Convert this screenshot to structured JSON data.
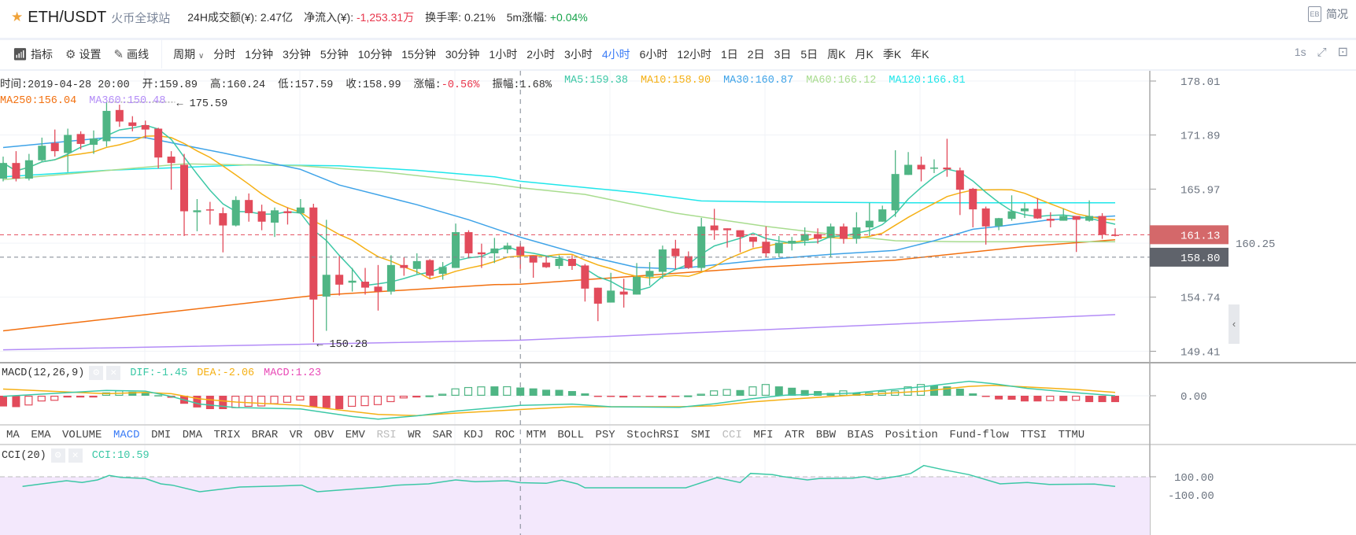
{
  "header": {
    "pair": "ETH/USDT",
    "exchange": "火币全球站",
    "stats": [
      {
        "label": "24H成交额(¥): ",
        "value": "2.47亿",
        "tone": "neutral"
      },
      {
        "label": "净流入(¥): ",
        "value": "-1,253.31万",
        "tone": "down"
      },
      {
        "label": "换手率: ",
        "value": "0.21%",
        "tone": "neutral"
      },
      {
        "label": "5m涨幅: ",
        "value": "+0.04%",
        "tone": "up"
      }
    ],
    "summary_label": "简况"
  },
  "toolbar": {
    "indicators": "指标",
    "settings": "设置",
    "draw": "画线",
    "period_label": "周期",
    "periods": [
      "分时",
      "1分钟",
      "3分钟",
      "5分钟",
      "10分钟",
      "15分钟",
      "30分钟",
      "1小时",
      "2小时",
      "3小时",
      "4小时",
      "6小时",
      "12小时",
      "1日",
      "2日",
      "3日",
      "5日",
      "周K",
      "月K",
      "季K",
      "年K"
    ],
    "active_period": "4小时",
    "interval": "1s"
  },
  "info": {
    "row1": [
      {
        "text": "时间:2019-04-28 20:00",
        "color": "#333333"
      },
      {
        "text": "开:159.89",
        "color": "#333333"
      },
      {
        "text": "高:160.24",
        "color": "#333333"
      },
      {
        "text": "低:157.59",
        "color": "#333333"
      },
      {
        "text": "收:158.99",
        "color": "#333333"
      },
      {
        "text": "涨幅:",
        "color": "#333333",
        "value": "-0.56%",
        "value_color": "#e8344a"
      },
      {
        "text": "振幅:1.68%",
        "color": "#333333"
      },
      {
        "text": "MA5:159.38",
        "color": "#3cc8a6"
      },
      {
        "text": "MA10:158.90",
        "color": "#f5b014"
      },
      {
        "text": "MA30:160.87",
        "color": "#3ea3e8"
      },
      {
        "text": "MA60:166.12",
        "color": "#a8dc8e"
      },
      {
        "text": "MA120:166.81",
        "color": "#1fe6ea"
      }
    ],
    "row2": [
      {
        "text": "MA250:156.04",
        "color": "#f2700f"
      },
      {
        "text": "MA360:150.48",
        "color": "#b38cf7"
      }
    ]
  },
  "colors": {
    "up": "#4fb584",
    "down": "#e24b5b",
    "ma5": "#3cc8a6",
    "ma10": "#f5b014",
    "ma30": "#3ea3e8",
    "ma60": "#a8dc8e",
    "ma120": "#1fe6ea",
    "ma250": "#f2700f",
    "ma360": "#b38cf7",
    "dif": "#3cc8a6",
    "dea": "#f5b014",
    "macd": "#e94bb7",
    "last_price_bg": "#d4686a",
    "cross_price_bg": "#5f636b"
  },
  "chart_data": {
    "type": "candlestick",
    "price_scale": "log",
    "y_ticks": [
      "178.01",
      "171.89",
      "165.97",
      "160.25",
      "154.74",
      "149.41"
    ],
    "last_price": "161.13",
    "crosshair_price": "158.80",
    "crosshair_index": 40,
    "max_annotation": "175.59",
    "min_annotation": "150.28",
    "candles": [
      [
        167.1,
        169.5,
        166.8,
        168.8
      ],
      [
        168.8,
        170.1,
        166.8,
        167.1
      ],
      [
        167.1,
        169.8,
        166.9,
        169.1
      ],
      [
        169.1,
        171.6,
        169.0,
        170.7
      ],
      [
        171.0,
        172.5,
        169.5,
        170.1
      ],
      [
        169.9,
        172.6,
        167.8,
        171.9
      ],
      [
        172.0,
        172.3,
        170.3,
        170.9
      ],
      [
        170.8,
        172.4,
        169.8,
        171.5
      ],
      [
        171.2,
        175.59,
        170.6,
        174.6
      ],
      [
        174.7,
        175.3,
        172.8,
        173.4
      ],
      [
        173.3,
        174.0,
        172.3,
        172.9
      ],
      [
        173.0,
        173.5,
        171.5,
        172.5
      ],
      [
        172.6,
        172.7,
        168.2,
        169.4
      ],
      [
        169.5,
        170.1,
        165.9,
        168.8
      ],
      [
        168.6,
        169.8,
        161.0,
        163.6
      ],
      [
        163.5,
        164.9,
        161.5,
        163.7
      ],
      [
        163.8,
        164.6,
        162.2,
        163.7
      ],
      [
        163.4,
        164.0,
        159.3,
        162.1
      ],
      [
        162.1,
        165.2,
        162.0,
        164.8
      ],
      [
        164.8,
        165.5,
        162.5,
        163.4
      ],
      [
        163.6,
        164.3,
        161.6,
        162.5
      ],
      [
        162.4,
        164.0,
        160.9,
        163.7
      ],
      [
        163.6,
        164.0,
        162.2,
        163.4
      ],
      [
        163.4,
        164.9,
        163.3,
        164.0
      ],
      [
        164.0,
        164.4,
        150.28,
        154.5
      ],
      [
        154.8,
        162.7,
        151.4,
        157.0
      ],
      [
        157.0,
        158.9,
        154.9,
        156.0
      ],
      [
        156.2,
        157.7,
        155.3,
        156.4
      ],
      [
        156.3,
        157.7,
        155.0,
        155.7
      ],
      [
        155.8,
        158.0,
        153.4,
        155.3
      ],
      [
        155.3,
        159.0,
        155.0,
        158.0
      ],
      [
        158.0,
        158.8,
        156.9,
        157.7
      ],
      [
        157.6,
        159.2,
        157.1,
        158.4
      ],
      [
        158.5,
        158.6,
        156.6,
        156.9
      ],
      [
        157.1,
        158.3,
        156.5,
        157.8
      ],
      [
        157.7,
        162.3,
        157.7,
        161.4
      ],
      [
        161.4,
        161.6,
        158.7,
        159.2
      ],
      [
        159.3,
        160.2,
        157.7,
        159.1
      ],
      [
        159.2,
        160.8,
        158.2,
        159.7
      ],
      [
        159.6,
        160.3,
        159.2,
        160.0
      ],
      [
        159.89,
        160.24,
        157.59,
        158.99
      ],
      [
        158.97,
        158.97,
        156.7,
        158.25
      ],
      [
        158.25,
        158.9,
        157.7,
        157.77
      ],
      [
        157.9,
        159.0,
        157.6,
        158.63
      ],
      [
        158.63,
        159.0,
        157.5,
        157.9
      ],
      [
        157.95,
        158.1,
        154.3,
        155.6
      ],
      [
        155.69,
        155.7,
        152.35,
        154.09
      ],
      [
        154.2,
        157.2,
        154.2,
        155.4
      ],
      [
        155.3,
        156.6,
        153.7,
        155.0
      ],
      [
        155.0,
        158.2,
        155.0,
        156.8
      ],
      [
        156.8,
        158.3,
        155.9,
        157.4
      ],
      [
        157.3,
        160.0,
        156.6,
        159.6
      ],
      [
        159.7,
        160.6,
        157.6,
        158.9
      ],
      [
        158.9,
        159.4,
        157.6,
        157.7
      ],
      [
        157.7,
        162.9,
        157.4,
        162.0
      ],
      [
        162.1,
        163.86,
        160.6,
        161.6
      ],
      [
        161.8,
        161.8,
        159.8,
        161.6
      ],
      [
        161.6,
        161.6,
        159.3,
        160.9
      ],
      [
        160.9,
        160.9,
        159.8,
        160.4
      ],
      [
        160.4,
        162.0,
        158.8,
        159.2
      ],
      [
        159.2,
        161.0,
        158.8,
        160.3
      ],
      [
        160.2,
        160.9,
        159.5,
        160.5
      ],
      [
        160.5,
        161.9,
        160.0,
        161.2
      ],
      [
        161.2,
        161.8,
        160.2,
        160.7
      ],
      [
        160.8,
        162.3,
        158.8,
        162.0
      ],
      [
        162.0,
        162.3,
        160.2,
        160.7
      ],
      [
        160.7,
        163.5,
        160.2,
        161.9
      ],
      [
        161.9,
        164.5,
        161.0,
        162.6
      ],
      [
        162.5,
        164.2,
        162.5,
        163.8
      ],
      [
        163.7,
        170.2,
        163.0,
        167.6
      ],
      [
        167.5,
        170.0,
        167.5,
        168.6
      ],
      [
        168.6,
        169.5,
        166.8,
        168.1
      ],
      [
        168.2,
        169.2,
        167.7,
        168.3
      ],
      [
        168.3,
        171.47,
        167.3,
        168.1
      ],
      [
        168.0,
        168.3,
        163.2,
        165.9
      ],
      [
        166.0,
        166.1,
        161.9,
        163.8
      ],
      [
        163.9,
        164.1,
        160.1,
        162.0
      ],
      [
        162.04,
        162.9,
        161.6,
        162.87
      ],
      [
        162.8,
        165.3,
        162.6,
        163.6
      ],
      [
        163.6,
        164.5,
        162.9,
        163.9
      ],
      [
        163.85,
        165.0,
        162.8,
        162.84
      ],
      [
        162.8,
        163.5,
        161.9,
        162.6
      ],
      [
        162.6,
        163.9,
        162.6,
        163.1
      ],
      [
        163.1,
        163.1,
        159.34,
        162.7
      ],
      [
        162.6,
        164.76,
        162.5,
        163.1
      ],
      [
        163.1,
        163.4,
        160.7,
        161.13
      ],
      [
        161.13,
        161.8,
        160.95,
        161.13
      ]
    ],
    "ma_lines": {
      "ma30": [
        [
          0,
          170.5
        ],
        [
          8,
          171.6
        ],
        [
          11,
          171.6
        ],
        [
          17,
          169.9
        ],
        [
          23,
          168.1
        ],
        [
          26,
          166.4
        ],
        [
          32,
          164.3
        ],
        [
          36,
          162.7
        ],
        [
          40,
          160.87
        ],
        [
          45,
          158.97
        ],
        [
          49,
          157.75
        ],
        [
          52,
          157.6
        ],
        [
          59,
          158.56
        ],
        [
          64,
          159.1
        ],
        [
          69,
          159.5
        ],
        [
          72,
          160.5
        ],
        [
          75,
          161.7
        ],
        [
          77,
          162.0
        ],
        [
          81,
          162.7
        ],
        [
          86,
          163.1
        ]
      ],
      "ma60": [
        [
          0,
          167.0
        ],
        [
          14,
          168.7
        ],
        [
          23,
          168.5
        ],
        [
          29,
          167.9
        ],
        [
          38,
          166.5
        ],
        [
          40,
          166.12
        ],
        [
          45,
          165.4
        ],
        [
          52,
          163.4
        ],
        [
          59,
          162.0
        ],
        [
          64,
          161.2
        ],
        [
          69,
          160.5
        ],
        [
          74,
          160.4
        ],
        [
          86,
          160.4
        ]
      ],
      "ma120": [
        [
          0,
          167.3
        ],
        [
          8,
          168.0
        ],
        [
          19,
          168.6
        ],
        [
          26,
          168.5
        ],
        [
          32,
          168.0
        ],
        [
          38,
          167.3
        ],
        [
          40,
          166.81
        ],
        [
          49,
          165.6
        ],
        [
          54,
          164.7
        ],
        [
          59,
          164.6
        ],
        [
          69,
          164.5
        ],
        [
          79,
          164.5
        ],
        [
          86,
          164.5
        ]
      ],
      "ma250": [
        [
          0,
          151.4
        ],
        [
          24,
          154.9
        ],
        [
          38,
          156.0
        ],
        [
          40,
          156.04
        ],
        [
          59,
          157.8
        ],
        [
          69,
          158.5
        ],
        [
          79,
          159.9
        ],
        [
          86,
          160.6
        ]
      ],
      "ma360": [
        [
          0,
          149.55
        ],
        [
          40,
          150.48
        ],
        [
          86,
          153.0
        ]
      ]
    },
    "macd": {
      "title": "MACD(12,26,9)",
      "dif_label": "DIF:-1.45",
      "dea_label": "DEA:-2.06",
      "macd_label": "MACD:1.23",
      "zero_label": "0.00",
      "hist": [
        -1.6,
        -1.7,
        -1.45,
        -0.85,
        -0.75,
        -0.25,
        -0.15,
        -0.05,
        0.5,
        0.8,
        0.6,
        0.4,
        0.08,
        -0.3,
        -1.2,
        -1.75,
        -2.0,
        -2.0,
        -1.85,
        -1.65,
        -1.6,
        -1.25,
        -1.05,
        -0.7,
        -1.65,
        -1.85,
        -2.0,
        -1.65,
        -1.55,
        -1.4,
        -0.95,
        -0.4,
        -0.1,
        0.05,
        0.3,
        1.1,
        1.3,
        1.4,
        1.4,
        1.42,
        1.23,
        1.1,
        0.9,
        0.88,
        0.7,
        0.35,
        -0.15,
        -0.15,
        -0.1,
        -0.1,
        -0.15,
        -0.1,
        -0.1,
        0.05,
        0.3,
        0.8,
        1.0,
        0.85,
        1.4,
        1.75,
        1.4,
        1.2,
        0.85,
        0.7,
        0.43,
        0.8,
        0.43,
        0.5,
        0.7,
        0.8,
        1.4,
        1.75,
        1.55,
        1.4,
        1.05,
        0.35,
        -0.15,
        -0.55,
        -0.6,
        -0.85,
        -0.85,
        -0.8,
        -0.8,
        -0.75,
        -0.95,
        -0.95,
        -0.95
      ],
      "dif": [
        [
          0,
          -0.08
        ],
        [
          8,
          0.8
        ],
        [
          11,
          0.7
        ],
        [
          13,
          -0.1
        ],
        [
          15.2,
          -1.25
        ],
        [
          18,
          -1.76
        ],
        [
          23,
          -1.96
        ],
        [
          27,
          -3.1
        ],
        [
          29,
          -3.5
        ],
        [
          32,
          -3.0
        ],
        [
          35,
          -2.3
        ],
        [
          40,
          -1.45
        ],
        [
          44,
          -1.25
        ],
        [
          47,
          -1.65
        ],
        [
          52.3,
          -1.73
        ],
        [
          55,
          -1.2
        ],
        [
          57.8,
          -0.47
        ],
        [
          60.5,
          0.08
        ],
        [
          65.7,
          0.4
        ],
        [
          71.2,
          1.37
        ],
        [
          74.7,
          2.16
        ],
        [
          76.6,
          1.8
        ],
        [
          79.2,
          1.1
        ],
        [
          83.3,
          0.4
        ],
        [
          86,
          0.0
        ]
      ],
      "dea": [
        [
          0,
          1.0
        ],
        [
          8,
          0.3
        ],
        [
          11,
          0.5
        ],
        [
          13,
          0.3
        ],
        [
          15.2,
          -0.47
        ],
        [
          18,
          -0.94
        ],
        [
          23,
          -1.45
        ],
        [
          27,
          -2.35
        ],
        [
          29,
          -2.8
        ],
        [
          32,
          -2.98
        ],
        [
          35,
          -2.6
        ],
        [
          40,
          -2.06
        ],
        [
          44,
          -1.65
        ],
        [
          47,
          -1.65
        ],
        [
          52.3,
          -1.65
        ],
        [
          55,
          -1.5
        ],
        [
          57.8,
          -0.94
        ],
        [
          60.5,
          -0.55
        ],
        [
          65.7,
          0.08
        ],
        [
          71.2,
          0.7
        ],
        [
          74.7,
          1.4
        ],
        [
          76.6,
          1.57
        ],
        [
          79.2,
          1.3
        ],
        [
          83.3,
          0.9
        ],
        [
          86,
          0.5
        ]
      ]
    },
    "cci": {
      "title": "CCI(20)",
      "value_label": "CCI:10.59",
      "levels": [
        "100.00",
        "-100.00"
      ],
      "points": [
        [
          1.5,
          -48
        ],
        [
          3,
          -8
        ],
        [
          4.9,
          40
        ],
        [
          6.1,
          12
        ],
        [
          7.3,
          52
        ],
        [
          8.2,
          120
        ],
        [
          9.1,
          92
        ],
        [
          11,
          72
        ],
        [
          12.2,
          -8
        ],
        [
          13.1,
          -28
        ],
        [
          15.2,
          -128
        ],
        [
          18.3,
          -56
        ],
        [
          21.3,
          -40
        ],
        [
          23.1,
          -28
        ],
        [
          24.3,
          -128
        ],
        [
          29.2,
          -56
        ],
        [
          30.4,
          -28
        ],
        [
          32.9,
          -8
        ],
        [
          35,
          52
        ],
        [
          36.5,
          24
        ],
        [
          39,
          40
        ],
        [
          40,
          10.59
        ],
        [
          42,
          0
        ],
        [
          43.2,
          48
        ],
        [
          44.4,
          -8
        ],
        [
          45,
          -68
        ],
        [
          52.8,
          -68
        ],
        [
          53.6,
          -16
        ],
        [
          55.2,
          88
        ],
        [
          57,
          12
        ],
        [
          57.8,
          152
        ],
        [
          59.5,
          132
        ],
        [
          60.3,
          104
        ],
        [
          62.2,
          52
        ],
        [
          63.1,
          72
        ],
        [
          65.7,
          80
        ],
        [
          66.6,
          104
        ],
        [
          67.6,
          60
        ],
        [
          69.3,
          112
        ],
        [
          70.2,
          152
        ],
        [
          71.2,
          272
        ],
        [
          72.8,
          204
        ],
        [
          74.7,
          132
        ],
        [
          77.1,
          -8
        ],
        [
          79.2,
          12
        ],
        [
          80.9,
          -16
        ],
        [
          84.4,
          -12
        ],
        [
          86,
          -48
        ]
      ]
    }
  },
  "indicator_tabs": {
    "items": [
      "MA",
      "EMA",
      "VOLUME",
      "MACD",
      "DMI",
      "DMA",
      "TRIX",
      "BRAR",
      "VR",
      "OBV",
      "EMV",
      "RSI",
      "WR",
      "SAR",
      "KDJ",
      "ROC",
      "MTM",
      "BOLL",
      "PSY",
      "StochRSI",
      "SMI",
      "CCI",
      "MFI",
      "ATR",
      "BBW",
      "BIAS",
      "Position",
      "Fund-flow",
      "TTSI",
      "TTMU"
    ],
    "active": "MACD",
    "dimmed": [
      "RSI",
      "CCI"
    ]
  }
}
